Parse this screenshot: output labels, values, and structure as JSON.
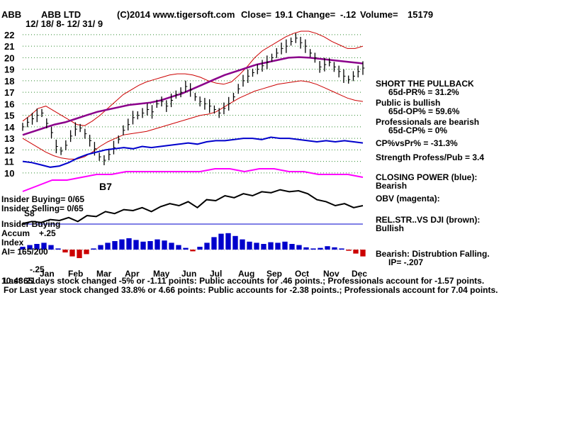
{
  "header": {
    "ticker": "ABB",
    "company": "ABB LTD",
    "copyright": "(C)2014 www.tigersoft.com",
    "close_label": "Close=",
    "close_value": "19.1",
    "change_label": "Change=",
    "change_value": "-.12",
    "volume_label": "Volume=",
    "volume_value": "15179",
    "date_range": "12/ 18/ 8- 12/ 31/ 9"
  },
  "chart_data": {
    "type": "line",
    "x_labels": [
      "Jan",
      "Feb",
      "Mar",
      "Apr",
      "May",
      "Jun",
      "Jul",
      "Aug",
      "Sep",
      "Oct",
      "Nov",
      "Dec"
    ],
    "y_ticks": [
      10,
      11,
      12,
      13,
      14,
      15,
      16,
      17,
      18,
      19,
      20,
      21,
      22
    ],
    "ylim": [
      9.5,
      22.3
    ],
    "grid": true,
    "price_close": [
      14,
      14.4,
      14.7,
      15,
      15.2,
      14.3,
      13.5,
      12.3,
      11.9,
      12.4,
      13.2,
      13.8,
      13.9,
      13.4,
      12.8,
      12.1,
      11.4,
      11.1,
      11.6,
      12.2,
      12.9,
      13.7,
      14.2,
      14.8,
      15.0,
      15.2,
      15.5,
      15.3,
      16.0,
      16.2,
      15.8,
      16.3,
      16.8,
      17.0,
      17.5,
      17.2,
      16.6,
      16.2,
      16.0,
      15.8,
      15.5,
      15.2,
      15.6,
      16.0,
      16.6,
      17.3,
      18.0,
      18.4,
      18.7,
      19.0,
      19.3,
      19.6,
      20.0,
      20.4,
      20.8,
      21.0,
      21.4,
      21.7,
      21.3,
      21.0,
      20.4,
      20.0,
      19.2,
      19.4,
      19.6,
      19.2,
      18.8,
      18.4,
      18.1,
      18.4,
      18.8,
      19.1
    ],
    "bollinger_upper": [
      14.5,
      15,
      15.6,
      15.8,
      15.4,
      15,
      14.6,
      14.2,
      14.1,
      14.5,
      15,
      15.6,
      16.2,
      16.8,
      17.2,
      17.6,
      17.9,
      18.1,
      18.3,
      18.5,
      18.6,
      18.6,
      18.5,
      18.3,
      18,
      17.8,
      17.7,
      17.9,
      18.5,
      19.2,
      20,
      20.6,
      21,
      21.4,
      21.8,
      22.1,
      22.3,
      22.3,
      22.1,
      21.8,
      21.4,
      21.1,
      20.8,
      20.8,
      21.0
    ],
    "bollinger_lower": [
      13,
      12.6,
      12.2,
      11.8,
      11.5,
      11.3,
      11.2,
      11.2,
      11.4,
      11.8,
      12.3,
      12.7,
      13,
      13.3,
      13.4,
      13.5,
      13.6,
      13.8,
      14,
      14.2,
      14.4,
      14.6,
      14.8,
      15,
      15.1,
      15.3,
      15.7,
      16.1,
      16.5,
      16.8,
      17.1,
      17.3,
      17.5,
      17.7,
      17.8,
      17.9,
      18,
      17.9,
      17.7,
      17.4,
      17.1,
      16.8,
      16.5,
      16.3,
      16.2
    ],
    "ma_purple": [
      13.3,
      13.6,
      13.9,
      14.2,
      14.4,
      14.7,
      15.0,
      15.3,
      15.5,
      15.7,
      15.9,
      16.0,
      16.1,
      16.3,
      16.6,
      16.9,
      17.3,
      17.7,
      18.1,
      18.5,
      18.8,
      19.1,
      19.4,
      19.6,
      19.8,
      20.0,
      20.05,
      20.0,
      19.9,
      19.8,
      19.7,
      19.6,
      19.5
    ],
    "closing_power": [
      11.0,
      10.9,
      10.7,
      10.5,
      10.6,
      10.9,
      11.3,
      11.6,
      11.8,
      12.0,
      12.1,
      12.2,
      12.1,
      12.3,
      12.2,
      12.3,
      12.4,
      12.5,
      12.6,
      12.5,
      12.7,
      12.8,
      12.8,
      12.9,
      13.0,
      13.0,
      12.9,
      13.1,
      13.0,
      13.0,
      12.9,
      12.8,
      12.7,
      12.8,
      12.7,
      12.8,
      12.7,
      12.6
    ],
    "obv": [
      9.3,
      9.5,
      9.7,
      9.7,
      9.8,
      9.9,
      9.9,
      10.0,
      10.0,
      10.0,
      10.0,
      10.0,
      10.0,
      10.1,
      10.1,
      10.0,
      10.1,
      10.1,
      10.0,
      10.0,
      9.9,
      9.9,
      9.9,
      9.8
    ],
    "accum_index": [
      0.05,
      0.08,
      0.1,
      0.12,
      0.08,
      0.02,
      -0.05,
      -0.12,
      -0.15,
      -0.08,
      0.02,
      0.08,
      0.12,
      0.15,
      0.18,
      0.2,
      0.17,
      0.14,
      0.15,
      0.18,
      0.16,
      0.12,
      0.08,
      0.03,
      -0.03,
      0.05,
      0.12,
      0.22,
      0.28,
      0.29,
      0.24,
      0.18,
      0.14,
      0.12,
      0.1,
      0.13,
      0.12,
      0.14,
      0.1,
      0.08,
      0.04,
      0.02,
      0.03,
      0.06,
      0.04,
      0.02,
      -0.02,
      -0.07,
      -0.12
    ]
  },
  "indicators": {
    "items": [
      {
        "title": "SHORT THE PULLBACK",
        "sub": "65d-PR% = 31.2%"
      },
      {
        "title": "Public is bullish",
        "sub": "65d-OP% = 59.6%"
      },
      {
        "title": "Professionals are bearish",
        "sub": "65d-CP% = 0%"
      }
    ],
    "cpvspr": "CP%vsPr% = -31.3%",
    "strength": "Strength Profess/Pub = 3.4",
    "closing_power_title": "CLOSING POWER (blue):",
    "closing_power_value": "Bearish",
    "obv_title": "OBV (magenta):",
    "relstr_title": "REL.STR..VS DJI (brown):",
    "relstr_value": "Bullish",
    "bearish_title": "Bearish: Distrubtion Falling.",
    "ip_value": "IP= -.207"
  },
  "left_labels": {
    "insider_buying": "Insider Buying= 0/65",
    "insider_selling": "Insider Selling= 0/65",
    "insider_buying_short": "Insider Buying",
    "accum": "Accum",
    "plus25": "+.25",
    "index": "Index",
    "ai": "AI= 165/200",
    "minus25": "-.25",
    "annot_b7": "B7",
    "annot_s8": "S8"
  },
  "footer": {
    "line1": "Last 65 days stock changed -5% or -1.11 points:  Public accounts for  .46 points.;  Professionals account for -1.57 points.",
    "line2": "For Last year stock changed  33.8% or  4.66 points:  Public accounts for -2.38 points.;  Professionals account for  7.04 points.",
    "timestamp": "10:43:21"
  },
  "colors": {
    "price": "#000000",
    "bollinger": "#cc0000",
    "ma": "#8b008b",
    "closing_power": "#0000cc",
    "obv": "#ff00ff",
    "grid": "#2e8b2e",
    "accum_pos": "#0000cc",
    "accum_neg": "#cc0000"
  }
}
